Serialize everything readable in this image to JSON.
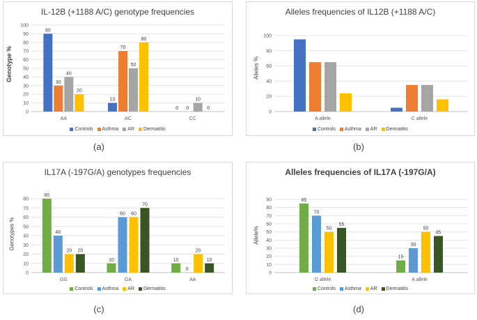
{
  "chart_data": [
    {
      "type": "bar",
      "title": "IL-12B (+1188 A/C) genotype frequencies",
      "ylabel": "Genotype %",
      "xlabel": "",
      "categories": [
        "AA",
        "AC",
        "CC"
      ],
      "ylim": [
        0,
        100
      ],
      "yticks": [
        0,
        10,
        20,
        30,
        40,
        50,
        60,
        70,
        80,
        90,
        100
      ],
      "grid": true,
      "show_data_labels": true,
      "legend_position": "bottom",
      "series": [
        {
          "name": "Controls",
          "values": [
            90,
            10,
            0
          ],
          "color": "#4472c4"
        },
        {
          "name": "Asthma",
          "values": [
            30,
            70,
            0
          ],
          "color": "#ed7d31"
        },
        {
          "name": "AR",
          "values": [
            40,
            50,
            10
          ],
          "color": "#a5a5a5"
        },
        {
          "name": "Dermatitis",
          "values": [
            20,
            80,
            0
          ],
          "color": "#ffc000"
        }
      ],
      "caption": "(a)"
    },
    {
      "type": "bar",
      "title": "Alleles frequencies of IL12B (+1188 A/C)",
      "ylabel": "Alleles %",
      "xlabel": "",
      "categories": [
        "A allele",
        "C allele"
      ],
      "ylim": [
        0,
        100
      ],
      "yticks": [
        0,
        20,
        40,
        60,
        80,
        100
      ],
      "grid": true,
      "show_data_labels": false,
      "legend_position": "bottom",
      "series": [
        {
          "name": "Controls",
          "values": [
            95,
            5
          ],
          "color": "#4472c4"
        },
        {
          "name": "Asthma",
          "values": [
            65,
            35
          ],
          "color": "#ed7d31"
        },
        {
          "name": "AR",
          "values": [
            65,
            35
          ],
          "color": "#a5a5a5"
        },
        {
          "name": "Dermatitis",
          "values": [
            24,
            16
          ],
          "color": "#ffc000"
        }
      ],
      "caption": "(b)"
    },
    {
      "type": "bar",
      "title": "IL17A (-197G/A) genotypes frequencies",
      "ylabel": "Genotypes %",
      "xlabel": "",
      "categories": [
        "GG",
        "GA",
        "AA"
      ],
      "ylim": [
        0,
        80
      ],
      "yticks": [
        0,
        10,
        20,
        30,
        40,
        50,
        60,
        70,
        80
      ],
      "grid": true,
      "show_data_labels": true,
      "legend_position": "bottom",
      "series": [
        {
          "name": "Controls",
          "values": [
            80,
            10,
            10
          ],
          "color": "#70ad47"
        },
        {
          "name": "Asthma",
          "values": [
            40,
            60,
            0
          ],
          "color": "#5b9bd5"
        },
        {
          "name": "AR",
          "values": [
            20,
            60,
            20
          ],
          "color": "#ffc000"
        },
        {
          "name": "Dermatitis",
          "values": [
            20,
            70,
            10
          ],
          "color": "#375623"
        }
      ],
      "caption": "(c)"
    },
    {
      "type": "bar",
      "title": "Alleles frequencies of IL17A (-197G/A)",
      "ylabel": "Allele%",
      "xlabel": "",
      "categories": [
        "G allele",
        "A allele"
      ],
      "ylim": [
        0,
        90
      ],
      "yticks": [
        0,
        10,
        20,
        30,
        40,
        50,
        60,
        70,
        80,
        90
      ],
      "grid": true,
      "show_data_labels": true,
      "legend_position": "bottom",
      "series": [
        {
          "name": "Controls",
          "values": [
            85,
            15
          ],
          "color": "#70ad47"
        },
        {
          "name": "Asthma",
          "values": [
            70,
            30
          ],
          "color": "#5b9bd5"
        },
        {
          "name": "AR",
          "values": [
            50,
            50
          ],
          "color": "#ffc000"
        },
        {
          "name": "Dermatitis",
          "values": [
            55,
            45
          ],
          "color": "#375623"
        }
      ],
      "caption": "(d)"
    }
  ]
}
